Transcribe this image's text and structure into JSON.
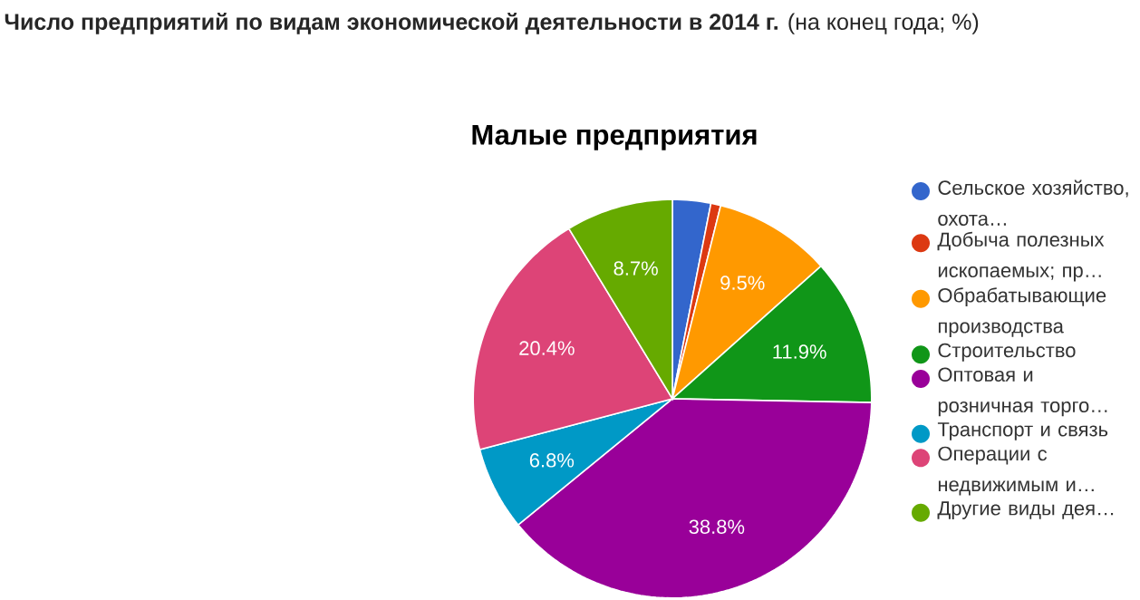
{
  "chart_data": {
    "type": "pie",
    "title": "**Число предприятий по видам экономической деятельности в 2014 г.** (на конец года; %)",
    "subtitle": "Малые предприятия",
    "categories": [
      "Сельское хозяйство, охота…",
      "Добыча полезных ископаемых; пр…",
      "Обрабатывающие производства",
      "Строительство",
      "Оптовая и розничная торго…",
      "Транспорт и связь",
      "Операции с недвижимым и…",
      "Другие виды дея…"
    ],
    "values": [
      3.1,
      0.8,
      9.5,
      11.9,
      38.8,
      6.8,
      20.4,
      8.7
    ],
    "value_labels": [
      null,
      null,
      "9.5%",
      "11.9%",
      "38.8%",
      "6.8%",
      "20.4%",
      "8.7%"
    ],
    "colors": [
      "#3366cc",
      "#dc3912",
      "#ff9900",
      "#109618",
      "#990099",
      "#0099c6",
      "#dd4477",
      "#66aa00"
    ],
    "legend": "right"
  }
}
